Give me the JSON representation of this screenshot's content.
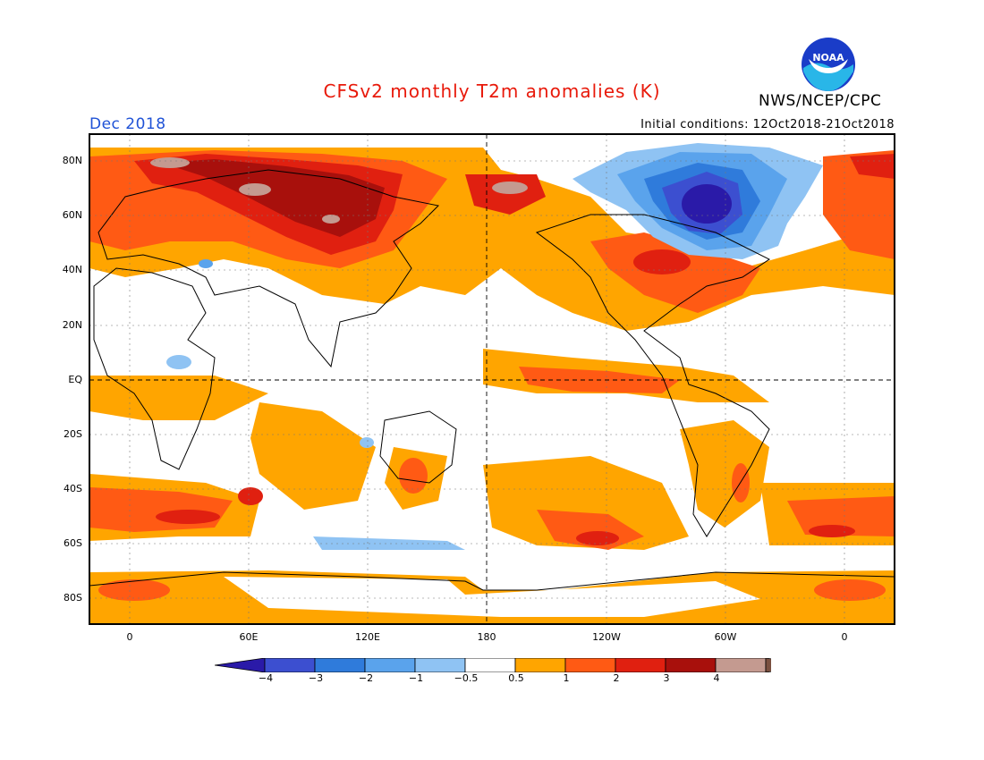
{
  "header": {
    "title": "CFSv2 monthly T2m anomalies (K)",
    "month": "Dec 2018",
    "initial_conditions": "Initial conditions: 12Oct2018-21Oct2018",
    "agency": "NWS/NCEP/CPC",
    "logo_text": "NOAA"
  },
  "map": {
    "lat_ticks": [
      "80N",
      "60N",
      "40N",
      "20N",
      "EQ",
      "20S",
      "40S",
      "60S",
      "80S"
    ],
    "lon_ticks": [
      "0",
      "60E",
      "120E",
      "180",
      "120W",
      "60W",
      "0"
    ]
  },
  "colorbar": {
    "labels": [
      "−4",
      "−3",
      "−2",
      "−1",
      "−0.5",
      "0.5",
      "1",
      "2",
      "3",
      "4"
    ],
    "colors": [
      "#2a1aa8",
      "#3c4fd0",
      "#2f7bdb",
      "#5aa3ec",
      "#8fc3f3",
      "#ffffff",
      "#ffa500",
      "#ff5a14",
      "#e02010",
      "#a8100c",
      "#c49a90",
      "#7a5040"
    ]
  }
}
